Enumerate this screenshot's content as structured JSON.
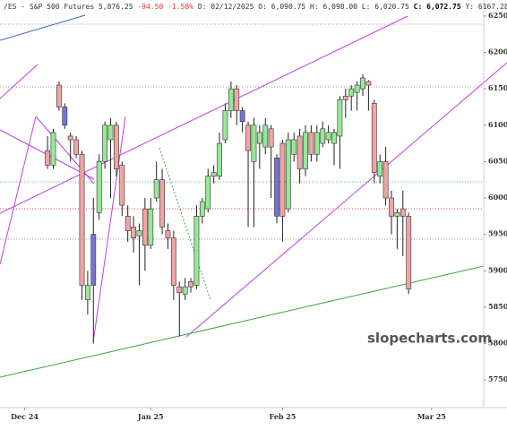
{
  "chart_data": {
    "type": "candlestick",
    "title": "/ES - S&P 500 Futures",
    "last": "5,876.25",
    "change": "-94.50",
    "change_pct": "-1.58%",
    "info": "D: 02/12/2025 O: 6,090.75 H: 6,098.00 L: 6,020.75",
    "close_text": "C: 6,072.75",
    "prev_text": "Y: 6167.28",
    "watermark": "slopecharts.com",
    "x": [
      0,
      1,
      2,
      3,
      4,
      5,
      6,
      7,
      8,
      9,
      10,
      11,
      12,
      13,
      14,
      15,
      16,
      17,
      18,
      19,
      20,
      21,
      22,
      23,
      24,
      25,
      26,
      27,
      28,
      29,
      30,
      31,
      32,
      33,
      34,
      35,
      36,
      37,
      38,
      39,
      40,
      41,
      42,
      43,
      44,
      45,
      46,
      47,
      48,
      49,
      50,
      51,
      52,
      53,
      54,
      55,
      56,
      57,
      58,
      59,
      60,
      61,
      62,
      63
    ],
    "open": [
      6065,
      6045,
      6155,
      6125,
      6085,
      6080,
      6060,
      5860,
      5880,
      5980,
      6050,
      6080,
      6100,
      6045,
      5975,
      5960,
      5948,
      5985,
      5935,
      6000,
      6025,
      5955,
      5945,
      5878,
      5868,
      5885,
      5880,
      5975,
      5985,
      6030,
      6030,
      6080,
      6120,
      6150,
      6120,
      6100,
      6050,
      6075,
      6070,
      6095,
      6055,
      6075,
      5985,
      6060,
      6085,
      6040,
      6090,
      6060,
      6075,
      6080,
      6075,
      6085,
      6140,
      6140,
      6145,
      6150,
      6160,
      6130,
      6030,
      6050,
      6000,
      5975,
      5985,
      5975
    ],
    "high": [
      6085,
      6095,
      6160,
      6130,
      6090,
      6085,
      6065,
      5900,
      6000,
      6060,
      6105,
      6110,
      6105,
      6050,
      5990,
      5975,
      5965,
      6000,
      6000,
      6050,
      6040,
      5965,
      5955,
      5885,
      5890,
      5890,
      5990,
      6000,
      6040,
      6045,
      6090,
      6130,
      6160,
      6155,
      6125,
      6105,
      6110,
      6100,
      6110,
      6100,
      6060,
      6080,
      6090,
      6090,
      6095,
      6100,
      6100,
      6100,
      6105,
      6100,
      6095,
      6140,
      6150,
      6155,
      6160,
      6170,
      6162,
      6135,
      6060,
      6070,
      6010,
      5985,
      6010,
      5980
    ],
    "low": [
      6040,
      6040,
      6120,
      6095,
      6050,
      6055,
      5860,
      5840,
      5800,
      5970,
      6040,
      6000,
      6030,
      5975,
      5940,
      5925,
      5880,
      5900,
      5930,
      5995,
      5950,
      5930,
      5860,
      5810,
      5860,
      5870,
      5875,
      5965,
      5980,
      6020,
      6025,
      6075,
      6110,
      6100,
      6090,
      5960,
      5960,
      6040,
      6060,
      6000,
      5965,
      5940,
      5980,
      6050,
      6020,
      6030,
      6050,
      6050,
      6070,
      6075,
      6045,
      6040,
      6110,
      6120,
      6120,
      6140,
      6120,
      6020,
      6020,
      5990,
      5950,
      5930,
      5920,
      5868
    ],
    "close": [
      6045,
      6090,
      6125,
      6100,
      6080,
      6060,
      5880,
      5880,
      5950,
      6050,
      6100,
      6100,
      6040,
      5990,
      5955,
      5945,
      5955,
      5935,
      5985,
      6025,
      5960,
      5945,
      5880,
      5870,
      5878,
      5878,
      5975,
      5995,
      6030,
      6035,
      6075,
      6120,
      6150,
      6120,
      6105,
      6065,
      6100,
      6090,
      6100,
      6070,
      5975,
      5975,
      6080,
      6080,
      6040,
      6090,
      6060,
      6090,
      6095,
      6090,
      6090,
      6135,
      6135,
      6150,
      6155,
      6165,
      6155,
      6035,
      6050,
      6000,
      5975,
      5980,
      5975,
      5875
    ],
    "highlight": [
      3,
      8,
      34,
      40
    ],
    "up_color": "#96e896",
    "down_color": "#f2a4a4",
    "highlight_color": "#7474d2",
    "xlim": [
      -8.3,
      76.1
    ],
    "xticks": [
      {
        "value": -4,
        "label": "Dec 24"
      },
      {
        "value": 18,
        "label": "Jan 25"
      },
      {
        "value": 41,
        "label": "Feb 25"
      },
      {
        "value": 67,
        "label": "Mar 25"
      }
    ],
    "ylim": [
      5712,
      6272
    ],
    "yticks": [
      5750,
      5800,
      5850,
      5900,
      5950,
      6000,
      6050,
      6100,
      6150,
      6200,
      6250
    ]
  }
}
